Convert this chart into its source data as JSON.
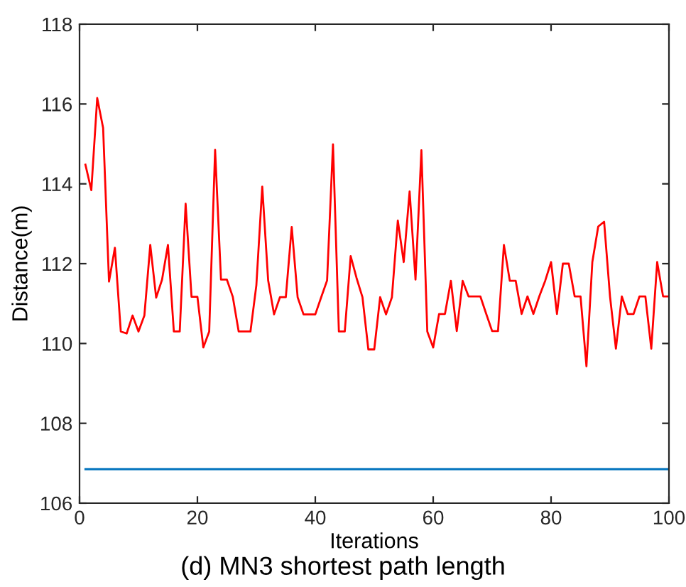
{
  "chart_data": {
    "type": "line",
    "title": "(d) MN3 shortest path length",
    "xlabel": "Iterations",
    "ylabel": "Distance(m)",
    "xlim": [
      0,
      100
    ],
    "xticks": [
      0,
      20,
      40,
      60,
      80,
      100
    ],
    "ylim": [
      106,
      118
    ],
    "yticks": [
      106,
      108,
      110,
      112,
      114,
      116,
      118
    ],
    "grid": false,
    "legend": false,
    "marker": "none",
    "line_style": "solid",
    "series": [
      {
        "color": "#ff0000",
        "x": [
          1,
          2,
          3,
          4,
          5,
          6,
          7,
          8,
          9,
          10,
          11,
          12,
          13,
          14,
          15,
          16,
          17,
          18,
          19,
          20,
          21,
          22,
          23,
          24,
          25,
          26,
          27,
          28,
          29,
          30,
          31,
          32,
          33,
          34,
          35,
          36,
          37,
          38,
          39,
          40,
          41,
          42,
          43,
          44,
          45,
          46,
          47,
          48,
          49,
          50,
          51,
          52,
          53,
          54,
          55,
          56,
          57,
          58,
          59,
          60,
          61,
          62,
          63,
          64,
          65,
          66,
          67,
          68,
          69,
          70,
          71,
          72,
          73,
          74,
          75,
          76,
          77,
          78,
          79,
          80,
          81,
          82,
          83,
          84,
          85,
          86,
          87,
          88,
          89,
          90,
          91,
          92,
          93,
          94,
          95,
          96,
          97,
          98,
          99,
          100
        ],
        "values": [
          114.48,
          113.84,
          116.15,
          115.4,
          111.55,
          112.4,
          110.3,
          110.25,
          110.7,
          110.3,
          110.7,
          112.47,
          111.15,
          111.6,
          112.47,
          110.3,
          110.3,
          113.5,
          111.17,
          111.17,
          109.9,
          110.3,
          114.85,
          111.6,
          111.6,
          111.17,
          110.3,
          110.3,
          110.3,
          111.46,
          113.93,
          111.58,
          110.73,
          111.16,
          111.16,
          112.92,
          111.16,
          110.73,
          110.73,
          110.73,
          111.16,
          111.58,
          114.99,
          110.3,
          110.3,
          112.19,
          111.64,
          111.16,
          109.85,
          109.85,
          111.16,
          110.73,
          111.16,
          113.08,
          112.04,
          113.81,
          111.6,
          114.84,
          110.3,
          109.9,
          110.74,
          110.74,
          111.57,
          110.31,
          111.57,
          111.18,
          111.18,
          111.18,
          110.74,
          110.31,
          110.31,
          112.47,
          111.57,
          111.57,
          110.74,
          111.18,
          110.74,
          111.18,
          111.57,
          112.04,
          110.74,
          112.0,
          112.0,
          111.18,
          111.18,
          109.43,
          112.04,
          112.93,
          113.05,
          111.18,
          109.87,
          111.18,
          110.74,
          110.74,
          111.18,
          111.18,
          109.87,
          112.04,
          111.18,
          111.18
        ]
      },
      {
        "color": "#0072bd",
        "x": [
          1,
          100
        ],
        "values": [
          106.85,
          106.85
        ]
      }
    ]
  }
}
